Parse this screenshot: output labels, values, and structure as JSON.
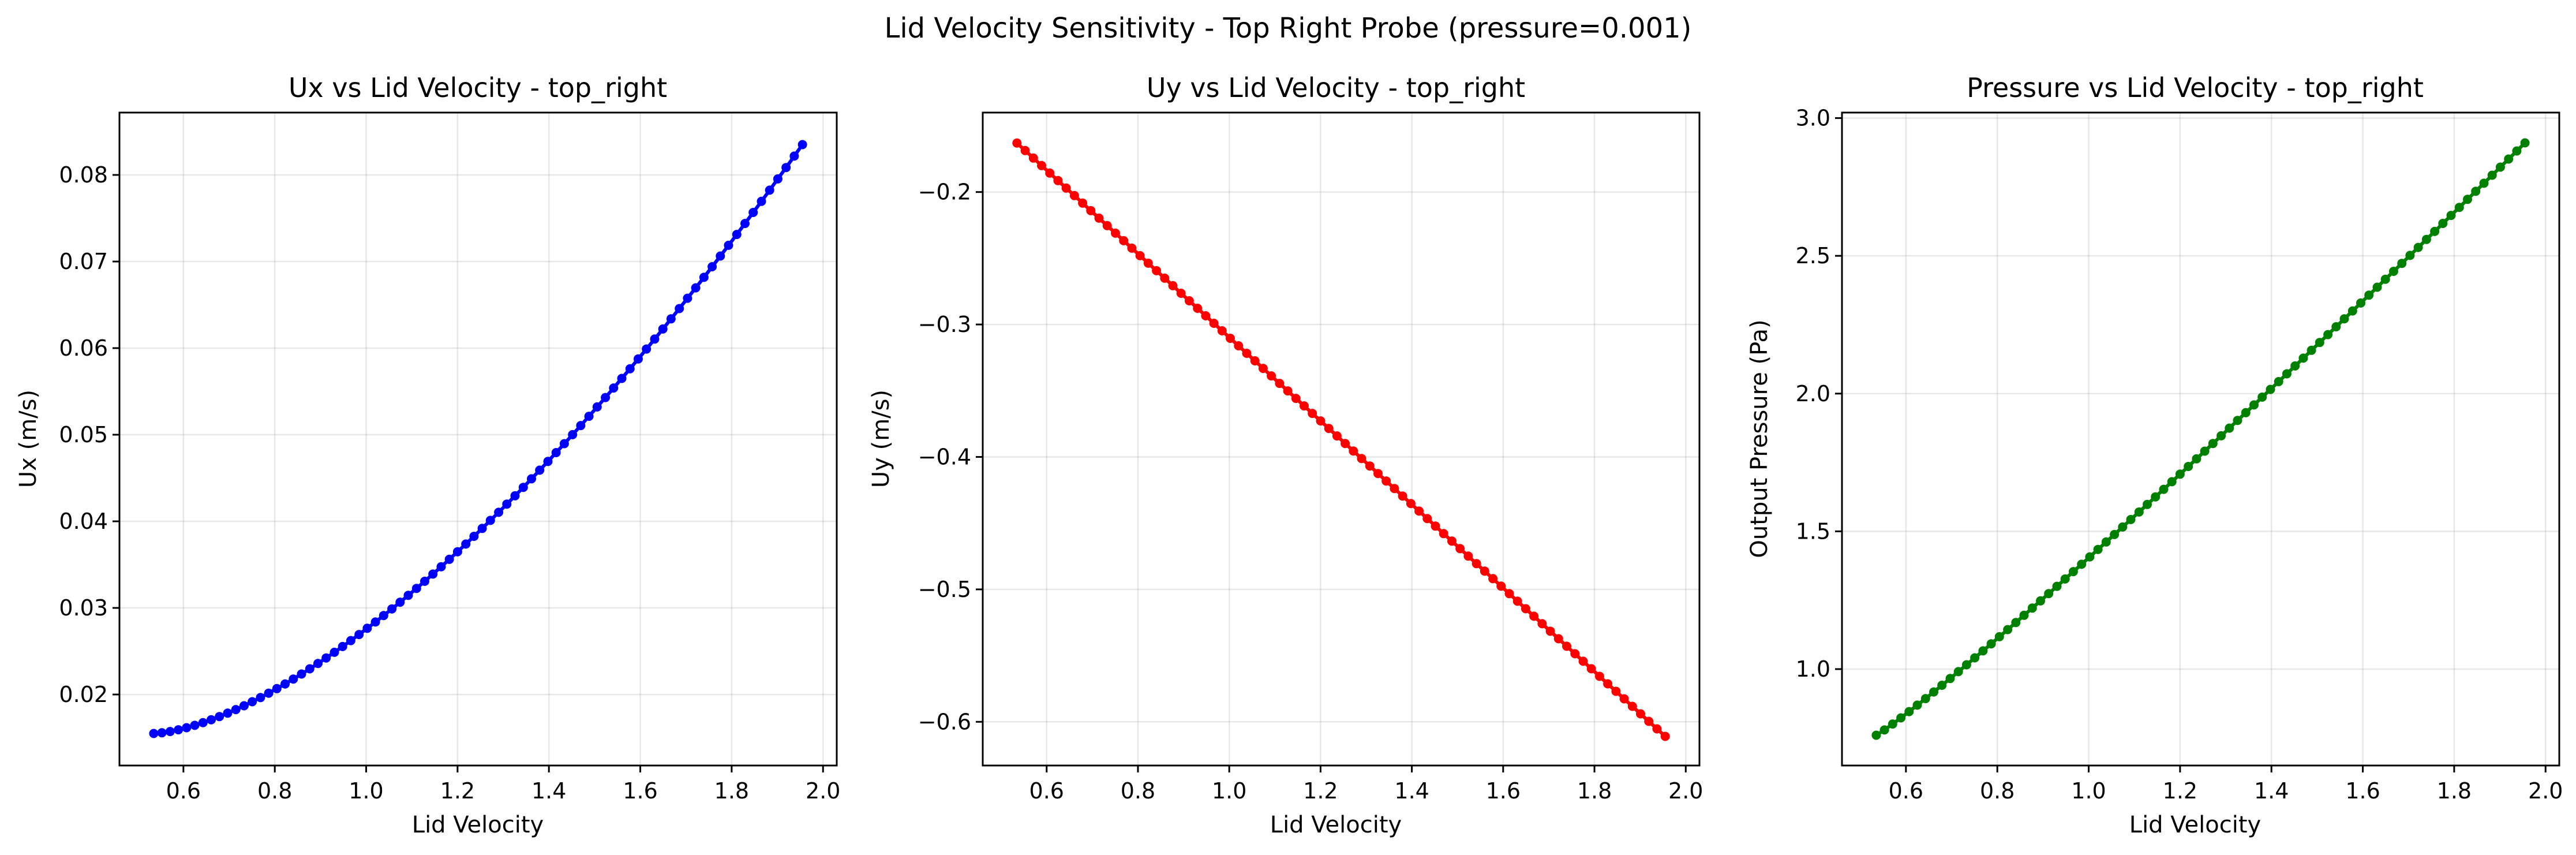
{
  "suptitle": "Lid Velocity Sensitivity - Top Right Probe (pressure=0.001)",
  "chart_data": [
    {
      "type": "line",
      "title": "Ux vs Lid Velocity - top_right",
      "xlabel": "Lid Velocity",
      "ylabel": "Ux (m/s)",
      "xlim": [
        0.46,
        2.03
      ],
      "ylim": [
        0.0118,
        0.0872
      ],
      "xticks": [
        0.6,
        0.8,
        1.0,
        1.2,
        1.4,
        1.6,
        1.8,
        2.0
      ],
      "xtick_labels": [
        "0.6",
        "0.8",
        "1.0",
        "1.2",
        "1.4",
        "1.6",
        "1.8",
        "2.0"
      ],
      "yticks": [
        0.02,
        0.03,
        0.04,
        0.05,
        0.06,
        0.07,
        0.08
      ],
      "ytick_labels": [
        "0.02",
        "0.03",
        "0.04",
        "0.05",
        "0.06",
        "0.07",
        "0.08"
      ],
      "grid": true,
      "color": "#0000ff",
      "marker": "circle",
      "x_range": [
        0.535,
        1.955
      ],
      "num_points": 80,
      "curve": "power",
      "y_start": 0.0155,
      "y_end": 0.0835,
      "exponent": 1.55
    },
    {
      "type": "line",
      "title": "Uy vs Lid Velocity - top_right",
      "xlabel": "Lid Velocity",
      "ylabel": "Uy (m/s)",
      "xlim": [
        0.46,
        2.03
      ],
      "ylim": [
        -0.633,
        -0.14
      ],
      "xticks": [
        0.6,
        0.8,
        1.0,
        1.2,
        1.4,
        1.6,
        1.8,
        2.0
      ],
      "xtick_labels": [
        "0.6",
        "0.8",
        "1.0",
        "1.2",
        "1.4",
        "1.6",
        "1.8",
        "2.0"
      ],
      "yticks": [
        -0.2,
        -0.3,
        -0.4,
        -0.5,
        -0.6
      ],
      "ytick_labels": [
        "−0.2",
        "−0.3",
        "−0.4",
        "−0.5",
        "−0.6"
      ],
      "grid": true,
      "color": "#ff0000",
      "marker": "circle",
      "x_range": [
        0.535,
        1.955
      ],
      "num_points": 80,
      "curve": "power",
      "y_start": -0.163,
      "y_end": -0.611,
      "exponent": 1.0
    },
    {
      "type": "line",
      "title": "Pressure vs Lid Velocity - top_right",
      "xlabel": "Lid Velocity",
      "ylabel": "Output Pressure (Pa)",
      "xlim": [
        0.46,
        2.03
      ],
      "ylim": [
        0.65,
        3.02
      ],
      "xticks": [
        0.6,
        0.8,
        1.0,
        1.2,
        1.4,
        1.6,
        1.8,
        2.0
      ],
      "xtick_labels": [
        "0.6",
        "0.8",
        "1.0",
        "1.2",
        "1.4",
        "1.6",
        "1.8",
        "2.0"
      ],
      "yticks": [
        1.0,
        1.5,
        2.0,
        2.5,
        3.0
      ],
      "ytick_labels": [
        "1.0",
        "1.5",
        "2.0",
        "2.5",
        "3.0"
      ],
      "grid": true,
      "color": "#008000",
      "marker": "circle",
      "x_range": [
        0.535,
        1.955
      ],
      "num_points": 80,
      "curve": "power",
      "y_start": 0.76,
      "y_end": 2.91,
      "exponent": 1.08
    }
  ]
}
